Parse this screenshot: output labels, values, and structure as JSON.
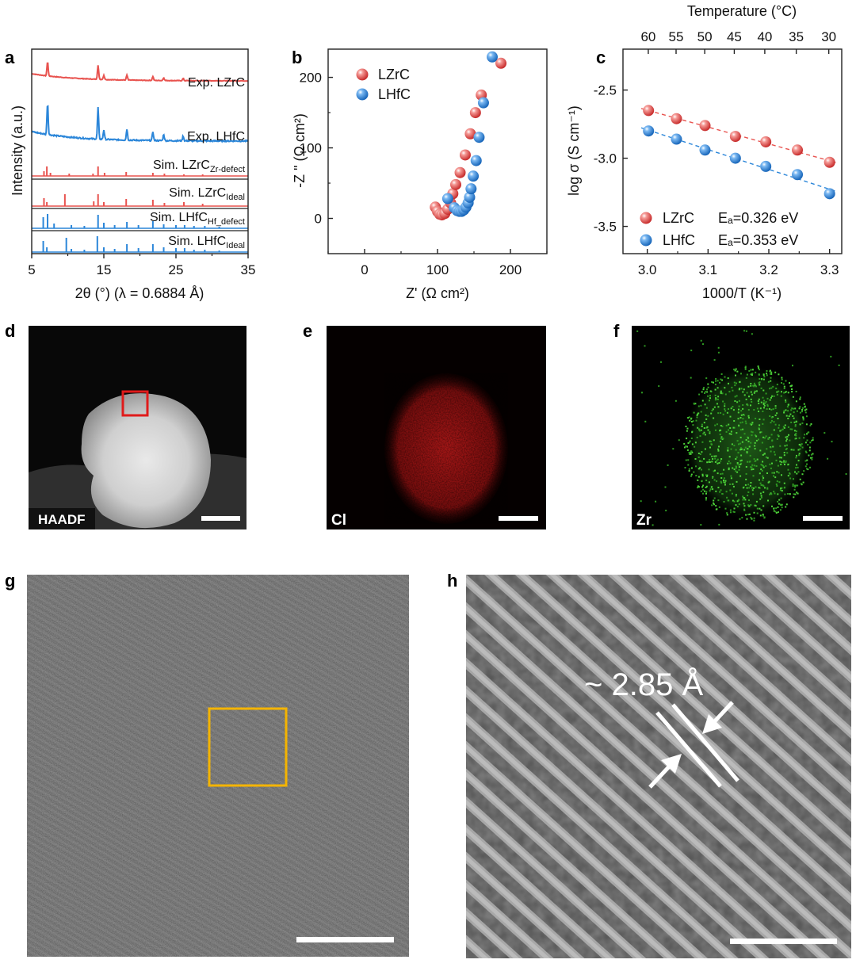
{
  "panels": {
    "a": {
      "letter": "a",
      "curves": [
        {
          "name": "Exp. LZrC",
          "sub": "",
          "color": "#e8534f"
        },
        {
          "name": "Exp. LHfC",
          "sub": "",
          "color": "#2b86d9"
        },
        {
          "name": "Sim. LZrC",
          "sub": "Zr-defect",
          "color": "#e8534f"
        },
        {
          "name": "Sim. LZrC",
          "sub": "Ideal",
          "color": "#e8534f"
        },
        {
          "name": "Sim. LHfC",
          "sub": "Hf_defect",
          "color": "#2b86d9"
        },
        {
          "name": "Sim. LHfC",
          "sub": "Ideal",
          "color": "#2b86d9"
        }
      ]
    },
    "b": {
      "letter": "b"
    },
    "c": {
      "letter": "c"
    },
    "d": {
      "letter": "d",
      "tag": "HAADF"
    },
    "e": {
      "letter": "e",
      "tag": "Cl"
    },
    "f": {
      "letter": "f",
      "tag": "Zr"
    },
    "g": {
      "letter": "g"
    },
    "h": {
      "letter": "h",
      "annotation": "~ 2.85 Å"
    }
  },
  "chart_data": [
    {
      "type": "line",
      "panel": "a",
      "xlabel": "2θ (°) (λ = 0.6884 Å)",
      "ylabel": "Intensity (a.u.)",
      "xlim": [
        5,
        35
      ],
      "xticks": [
        5,
        15,
        25,
        35
      ],
      "xminor": [
        10,
        20,
        30
      ],
      "peaks_2theta": [
        7.2,
        14.2,
        15.0,
        18.2,
        21.8,
        23.3,
        26.0
      ],
      "series": [
        {
          "name": "Exp. LZrC"
        },
        {
          "name": "Exp. LHfC"
        },
        {
          "name": "Sim. LZrC Zr-defect"
        },
        {
          "name": "Sim. LZrC Ideal"
        },
        {
          "name": "Sim. LHfC Hf_defect"
        },
        {
          "name": "Sim. LHfC Ideal"
        }
      ]
    },
    {
      "type": "scatter",
      "panel": "b",
      "xlabel": "Z' (Ω cm²)",
      "ylabel": "-Z \" (Ω cm²)",
      "xlim": [
        -50,
        250
      ],
      "ylim": [
        -50,
        240
      ],
      "xticks": [
        0,
        100,
        200
      ],
      "yticks": [
        0,
        100,
        200
      ],
      "series": [
        {
          "name": "LZrC",
          "color": "#e8534f",
          "x": [
            97,
            100,
            103,
            106,
            110,
            114,
            118,
            121,
            125,
            131,
            138,
            145,
            152,
            160,
            187
          ],
          "y": [
            16,
            10,
            6,
            5,
            7,
            13,
            22,
            35,
            48,
            65,
            90,
            120,
            150,
            175,
            220
          ]
        },
        {
          "name": "LHfC",
          "color": "#2b86d9",
          "x": [
            114,
            123,
            127,
            130,
            133,
            136,
            139,
            142,
            144,
            146,
            149,
            153,
            157,
            163,
            175
          ],
          "y": [
            28,
            15,
            11,
            10,
            10,
            12,
            16,
            22,
            30,
            42,
            60,
            82,
            115,
            164,
            229
          ]
        }
      ]
    },
    {
      "type": "scatter",
      "panel": "c",
      "xlabel": "1000/T (K⁻¹)",
      "ylabel": "log σ (S cm⁻¹)",
      "x2label": "Temperature (°C)",
      "xlim": [
        2.96,
        3.32
      ],
      "ylim": [
        -3.7,
        -2.2
      ],
      "xticks": [
        3.0,
        3.1,
        3.2,
        3.3
      ],
      "yticks": [
        -2.5,
        -3.0,
        -3.5
      ],
      "top_ticks": [
        60,
        55,
        50,
        45,
        40,
        35,
        30
      ],
      "series": [
        {
          "name": "LZrC",
          "ea": "Eₐ=0.326 eV",
          "color": "#e8534f",
          "x": [
            3.002,
            3.048,
            3.095,
            3.145,
            3.195,
            3.247,
            3.3
          ],
          "y": [
            -2.65,
            -2.71,
            -2.76,
            -2.84,
            -2.88,
            -2.94,
            -3.03
          ]
        },
        {
          "name": "LHfC",
          "ea": "Eₐ=0.353 eV",
          "color": "#2b86d9",
          "x": [
            3.002,
            3.048,
            3.095,
            3.145,
            3.195,
            3.247,
            3.3
          ],
          "y": [
            -2.8,
            -2.86,
            -2.94,
            -3.0,
            -3.06,
            -3.12,
            -3.26
          ]
        }
      ]
    }
  ]
}
